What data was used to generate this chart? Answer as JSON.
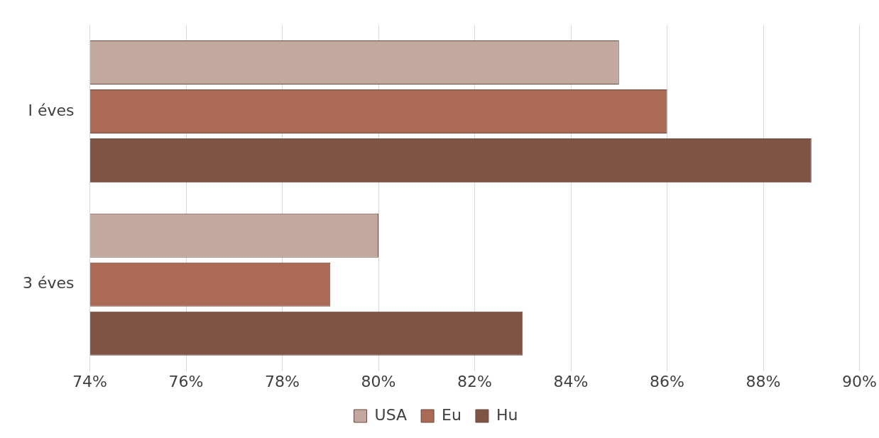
{
  "chart_data": {
    "type": "bar",
    "orientation": "horizontal",
    "categories": [
      "I éves",
      "3 éves"
    ],
    "series": [
      {
        "name": "USA",
        "color": "#c2a89f",
        "values": [
          85,
          80
        ]
      },
      {
        "name": "Eu",
        "color": "#aa6a55",
        "values": [
          86,
          79
        ]
      },
      {
        "name": "Hu",
        "color": "#7e5444",
        "values": [
          89,
          83
        ]
      }
    ],
    "xlim": [
      74,
      90
    ],
    "xticks": [
      {
        "value": 74,
        "label": "74%"
      },
      {
        "value": 76,
        "label": "76%"
      },
      {
        "value": 78,
        "label": "78%"
      },
      {
        "value": 80,
        "label": "80%"
      },
      {
        "value": 82,
        "label": "82%"
      },
      {
        "value": 84,
        "label": "84%"
      },
      {
        "value": 86,
        "label": "86%"
      },
      {
        "value": 88,
        "label": "88%"
      },
      {
        "value": 90,
        "label": "90%"
      }
    ],
    "grid": "x",
    "legend": "bottom"
  }
}
